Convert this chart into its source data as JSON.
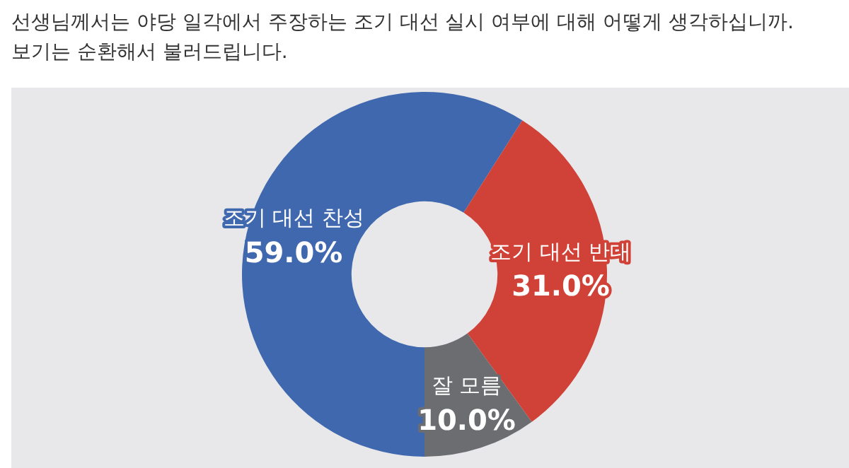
{
  "chart_data": {
    "type": "donut",
    "title": "선생님께서는 야당 일각에서 주장하는 조기 대선 실시 여부에 대해 어떻게 생각하십니까.",
    "subtitle": "보기는 순환해서 불러드립니다.",
    "categories": [
      "조기 대선 찬성",
      "조기 대선 반대",
      "잘 모름"
    ],
    "values": [
      59.0,
      31.0,
      10.0
    ],
    "colors": [
      "#4068ae",
      "#d04237",
      "#6c6d70"
    ],
    "value_labels": [
      "59.0%",
      "31.0%",
      "10.0%"
    ],
    "legend": false
  }
}
